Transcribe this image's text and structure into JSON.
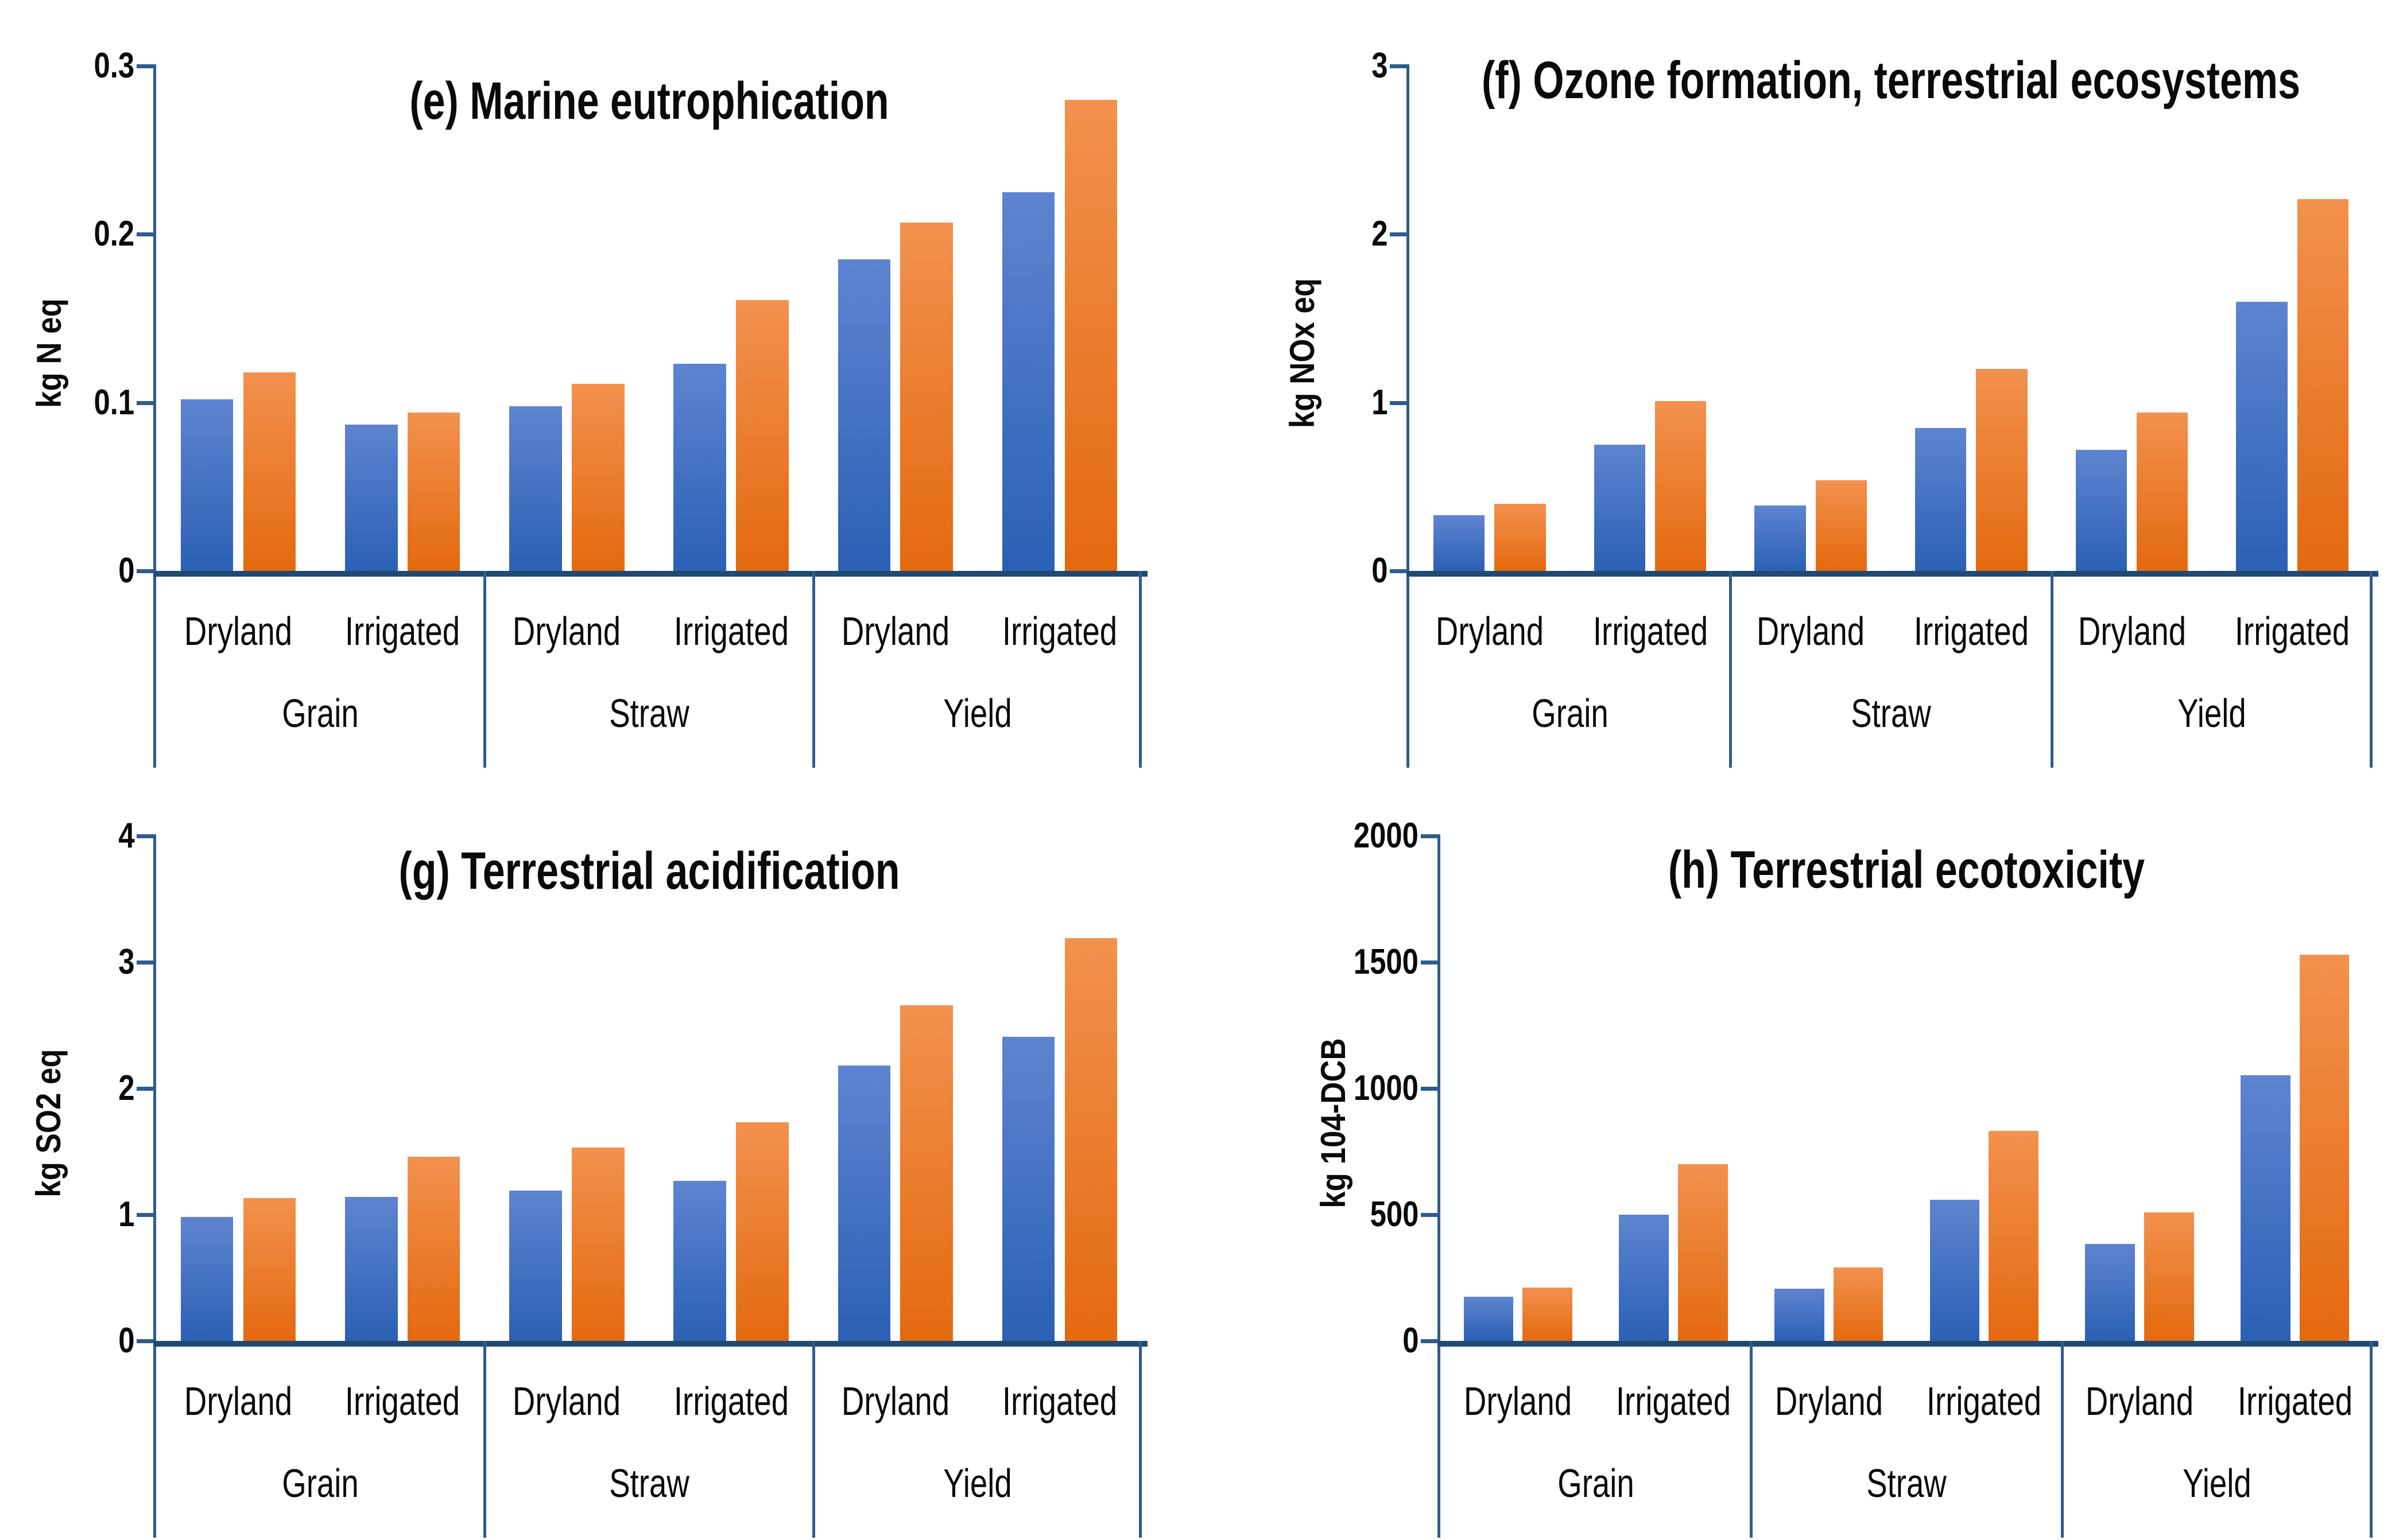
{
  "colors": {
    "background": "#FFFFFF",
    "text": "#0A0A0A",
    "axis_line": "#2E5D8C",
    "baseline": "#1E4A73",
    "bar_blue_top": "#5E84D0",
    "bar_blue_bottom": "#2B60B4",
    "bar_orange_top": "#F2914E",
    "bar_orange_bottom": "#E4690F"
  },
  "chart_data": [
    {
      "type": "bar",
      "panel_label": "e",
      "title": "(e) Marine eutrophication",
      "ylabel": "kg N eq",
      "ylim": [
        0,
        0.3
      ],
      "yticks": [
        0,
        0.1,
        0.2,
        0.3
      ],
      "ytick_labels": [
        "0",
        "0.1",
        "0.2",
        "0.3"
      ],
      "groups": [
        "Grain",
        "Straw",
        "Yield"
      ],
      "subgroups": [
        "Dryland",
        "Irrigated"
      ],
      "categories": [
        "Grain Dryland",
        "Grain Irrigated",
        "Straw Dryland",
        "Straw Irrigated",
        "Yield Dryland",
        "Yield Irrigated"
      ],
      "series": [
        {
          "name": "blue",
          "values": [
            0.102,
            0.087,
            0.098,
            0.123,
            0.185,
            0.225
          ]
        },
        {
          "name": "orange",
          "values": [
            0.118,
            0.094,
            0.111,
            0.161,
            0.207,
            0.28
          ]
        }
      ],
      "legend": "none",
      "grid": false
    },
    {
      "type": "bar",
      "panel_label": "f",
      "title": "(f) Ozone formation, terrestrial ecosystems",
      "ylabel": "kg NOx eq",
      "ylim": [
        0,
        3
      ],
      "yticks": [
        0,
        1,
        2,
        3
      ],
      "ytick_labels": [
        "0",
        "1",
        "2",
        "3"
      ],
      "groups": [
        "Grain",
        "Straw",
        "Yield"
      ],
      "subgroups": [
        "Dryland",
        "Irrigated"
      ],
      "categories": [
        "Grain Dryland",
        "Grain Irrigated",
        "Straw Dryland",
        "Straw Irrigated",
        "Yield Dryland",
        "Yield Irrigated"
      ],
      "series": [
        {
          "name": "blue",
          "values": [
            0.33,
            0.75,
            0.39,
            0.85,
            0.72,
            1.6
          ]
        },
        {
          "name": "orange",
          "values": [
            0.4,
            1.01,
            0.54,
            1.2,
            0.94,
            2.21
          ]
        }
      ],
      "legend": "none",
      "grid": false
    },
    {
      "type": "bar",
      "panel_label": "g",
      "title": "(g) Terrestrial acidification",
      "ylabel": "kg SO2 eq",
      "ylim": [
        0,
        4
      ],
      "yticks": [
        0,
        1,
        2,
        3,
        4
      ],
      "ytick_labels": [
        "0",
        "1",
        "2",
        "3",
        "4"
      ],
      "groups": [
        "Grain",
        "Straw",
        "Yield"
      ],
      "subgroups": [
        "Dryland",
        "Irrigated"
      ],
      "categories": [
        "Grain Dryland",
        "Grain Irrigated",
        "Straw Dryland",
        "Straw Irrigated",
        "Yield Dryland",
        "Yield Irrigated"
      ],
      "series": [
        {
          "name": "blue",
          "values": [
            0.98,
            1.14,
            1.19,
            1.27,
            2.18,
            2.41
          ]
        },
        {
          "name": "orange",
          "values": [
            1.13,
            1.46,
            1.53,
            1.73,
            2.66,
            3.19
          ]
        }
      ],
      "legend": "none",
      "grid": false
    },
    {
      "type": "bar",
      "panel_label": "h",
      "title": "(h) Terrestrial ecotoxicity",
      "ylabel": "kg 104-DCB",
      "ylim": [
        0,
        2000
      ],
      "yticks": [
        0,
        500,
        1000,
        1500,
        2000
      ],
      "ytick_labels": [
        "0",
        "500",
        "1000",
        "1500",
        "2000"
      ],
      "groups": [
        "Grain",
        "Straw",
        "Yield"
      ],
      "subgroups": [
        "Dryland",
        "Irrigated"
      ],
      "categories": [
        "Grain Dryland",
        "Grain Irrigated",
        "Straw Dryland",
        "Straw Irrigated",
        "Yield Dryland",
        "Yield Irrigated"
      ],
      "series": [
        {
          "name": "blue",
          "values": [
            175,
            500,
            207,
            560,
            385,
            1052
          ]
        },
        {
          "name": "orange",
          "values": [
            212,
            700,
            290,
            832,
            508,
            1530
          ]
        }
      ],
      "legend": "none",
      "grid": false
    }
  ]
}
